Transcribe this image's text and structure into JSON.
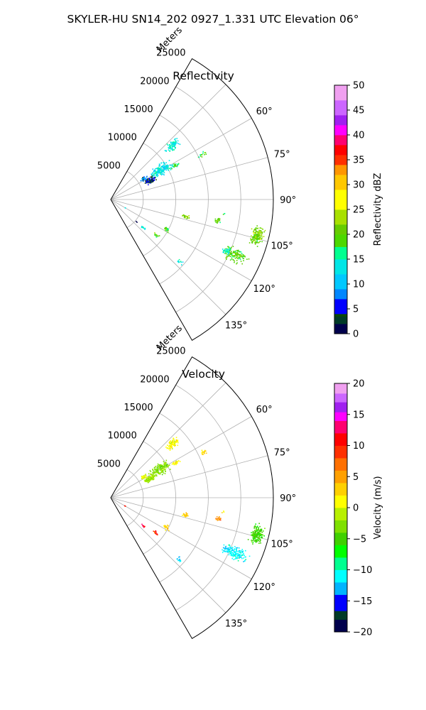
{
  "figure": {
    "title": "SKYLER-HU  SN14_202  0927_1.331 UTC Elevation 06°"
  },
  "chart_data": [
    {
      "type": "polar_sector",
      "name": "reflectivity",
      "title": "Reflectivity",
      "range_label": "Meters",
      "range_ticks": [
        5000,
        10000,
        15000,
        20000,
        25000
      ],
      "range_tick_labels": [
        "5000",
        "10000",
        "15000",
        "20000",
        "25000"
      ],
      "range_max": 25000,
      "azimuth_range_deg": [
        30,
        150
      ],
      "azimuth_ticks_deg": [
        60,
        75,
        90,
        105,
        120,
        135
      ],
      "azimuth_tick_labels": [
        "60°",
        "75°",
        "90°",
        "105°",
        "120°",
        "135°"
      ],
      "grid": true,
      "colorbar": {
        "label": "Reflectivity dBZ",
        "min": 0,
        "max": 50,
        "ticks": [
          0,
          5,
          10,
          15,
          20,
          25,
          30,
          35,
          40,
          45,
          50
        ],
        "tick_labels": [
          "0",
          "5",
          "10",
          "15",
          "20",
          "25",
          "30",
          "35",
          "40",
          "45",
          "50"
        ]
      },
      "echo_clusters": [
        {
          "az": 62,
          "range": 11200,
          "az_spread": 1.2,
          "range_spread": 600,
          "value": 17,
          "value_spread": 3,
          "count": 30
        },
        {
          "az": 64,
          "range": 15600,
          "az_spread": 1.0,
          "range_spread": 500,
          "value": 19,
          "value_spread": 3,
          "count": 14
        },
        {
          "az": 49,
          "range": 12600,
          "az_spread": 2.0,
          "range_spread": 900,
          "value": 14,
          "value_spread": 2,
          "count": 85
        },
        {
          "az": 60,
          "range": 8800,
          "az_spread": 4.0,
          "range_spread": 1300,
          "value": 13,
          "value_spread": 3,
          "count": 170
        },
        {
          "az": 64,
          "range": 6700,
          "az_spread": 3.0,
          "range_spread": 700,
          "value": 4,
          "value_spread": 2,
          "count": 90
        },
        {
          "az": 58,
          "range": 6000,
          "az_spread": 2.0,
          "range_spread": 400,
          "value": 8,
          "value_spread": 4,
          "count": 35
        },
        {
          "az": 103,
          "range": 11900,
          "az_spread": 1.2,
          "range_spread": 400,
          "value": 22,
          "value_spread": 2,
          "count": 22
        },
        {
          "az": 101,
          "range": 16900,
          "az_spread": 1.0,
          "range_spread": 400,
          "value": 20,
          "value_spread": 2,
          "count": 20
        },
        {
          "az": 97,
          "range": 17600,
          "az_spread": 0.5,
          "range_spread": 300,
          "value": 18,
          "value_spread": 2,
          "count": 3
        },
        {
          "az": 104,
          "range": 23200,
          "az_spread": 2.5,
          "range_spread": 700,
          "value": 21,
          "value_spread": 3,
          "count": 180
        },
        {
          "az": 114,
          "range": 21000,
          "az_spread": 2.2,
          "range_spread": 1400,
          "value": 20,
          "value_spread": 3,
          "count": 140
        },
        {
          "az": 114,
          "range": 19500,
          "az_spread": 1.2,
          "range_spread": 500,
          "value": 15,
          "value_spread": 2,
          "count": 30
        },
        {
          "az": 118,
          "range": 9700,
          "az_spread": 1.5,
          "range_spread": 400,
          "value": 18,
          "value_spread": 3,
          "count": 20
        },
        {
          "az": 132,
          "range": 14200,
          "az_spread": 1.0,
          "range_spread": 400,
          "value": 14,
          "value_spread": 2,
          "count": 12
        },
        {
          "az": 128,
          "range": 8800,
          "az_spread": 1.0,
          "range_spread": 400,
          "value": 20,
          "value_spread": 3,
          "count": 14
        },
        {
          "az": 131,
          "range": 6600,
          "az_spread": 1.0,
          "range_spread": 300,
          "value": 15,
          "value_spread": 3,
          "count": 10
        },
        {
          "az": 120,
          "range": 2600,
          "az_spread": 0.5,
          "range_spread": 100,
          "value": 14,
          "value_spread": 1,
          "count": 2
        },
        {
          "az": 131,
          "range": 5200,
          "az_spread": 0.3,
          "range_spread": 100,
          "value": 0,
          "value_spread": 0,
          "count": 2
        }
      ]
    },
    {
      "type": "polar_sector",
      "name": "velocity",
      "title": "Velocity",
      "range_label": "Meters",
      "range_ticks": [
        5000,
        10000,
        15000,
        20000,
        25000
      ],
      "range_tick_labels": [
        "5000",
        "10000",
        "15000",
        "20000",
        "25000"
      ],
      "range_max": 25000,
      "azimuth_range_deg": [
        30,
        150
      ],
      "azimuth_ticks_deg": [
        60,
        75,
        90,
        105,
        120,
        135
      ],
      "azimuth_tick_labels": [
        "60°",
        "75°",
        "90°",
        "105°",
        "120°",
        "135°"
      ],
      "grid": true,
      "colorbar": {
        "label": "Velocity (m/s)",
        "min": -20,
        "max": 20,
        "ticks": [
          -20,
          -15,
          -10,
          -5,
          0,
          5,
          10,
          15,
          20
        ],
        "tick_labels": [
          "−20",
          "−15",
          "−10",
          "−5",
          "0",
          "5",
          "10",
          "15",
          "20"
        ]
      },
      "echo_clusters": [
        {
          "az": 62,
          "range": 11200,
          "az_spread": 1.2,
          "range_spread": 600,
          "value": 1,
          "value_spread": 1.5,
          "count": 30
        },
        {
          "az": 64,
          "range": 15600,
          "az_spread": 1.0,
          "range_spread": 500,
          "value": 3,
          "value_spread": 1.5,
          "count": 14
        },
        {
          "az": 49,
          "range": 12600,
          "az_spread": 2.0,
          "range_spread": 900,
          "value": 1,
          "value_spread": 1.5,
          "count": 85
        },
        {
          "az": 60,
          "range": 8800,
          "az_spread": 4.0,
          "range_spread": 1300,
          "value": -3,
          "value_spread": 1.5,
          "count": 170
        },
        {
          "az": 64,
          "range": 6700,
          "az_spread": 3.0,
          "range_spread": 700,
          "value": -2,
          "value_spread": 1.5,
          "count": 90
        },
        {
          "az": 58,
          "range": 6000,
          "az_spread": 2.0,
          "range_spread": 400,
          "value": 0,
          "value_spread": 2,
          "count": 35
        },
        {
          "az": 103,
          "range": 11900,
          "az_spread": 1.2,
          "range_spread": 400,
          "value": 3,
          "value_spread": 1.5,
          "count": 22
        },
        {
          "az": 101,
          "range": 16900,
          "az_spread": 1.0,
          "range_spread": 400,
          "value": 6,
          "value_spread": 2,
          "count": 20
        },
        {
          "az": 97,
          "range": 17600,
          "az_spread": 0.5,
          "range_spread": 300,
          "value": 2,
          "value_spread": 1,
          "count": 3
        },
        {
          "az": 104,
          "range": 23200,
          "az_spread": 2.5,
          "range_spread": 700,
          "value": -5,
          "value_spread": 1.5,
          "count": 180
        },
        {
          "az": 114,
          "range": 21000,
          "az_spread": 2.2,
          "range_spread": 1400,
          "value": -11,
          "value_spread": 1.5,
          "count": 140
        },
        {
          "az": 114,
          "range": 19500,
          "az_spread": 1.2,
          "range_spread": 500,
          "value": -12,
          "value_spread": 1.5,
          "count": 30
        },
        {
          "az": 118,
          "range": 9700,
          "az_spread": 1.5,
          "range_spread": 400,
          "value": 3,
          "value_spread": 1.5,
          "count": 20
        },
        {
          "az": 132,
          "range": 14200,
          "az_spread": 1.0,
          "range_spread": 400,
          "value": -12,
          "value_spread": 1.5,
          "count": 12
        },
        {
          "az": 128,
          "range": 8800,
          "az_spread": 1.0,
          "range_spread": 400,
          "value": 10,
          "value_spread": 2,
          "count": 14
        },
        {
          "az": 131,
          "range": 6600,
          "az_spread": 1.0,
          "range_spread": 300,
          "value": 12,
          "value_spread": 2,
          "count": 10
        },
        {
          "az": 120,
          "range": 2600,
          "az_spread": 0.5,
          "range_spread": 100,
          "value": 10,
          "value_spread": 1,
          "count": 2
        }
      ]
    }
  ]
}
